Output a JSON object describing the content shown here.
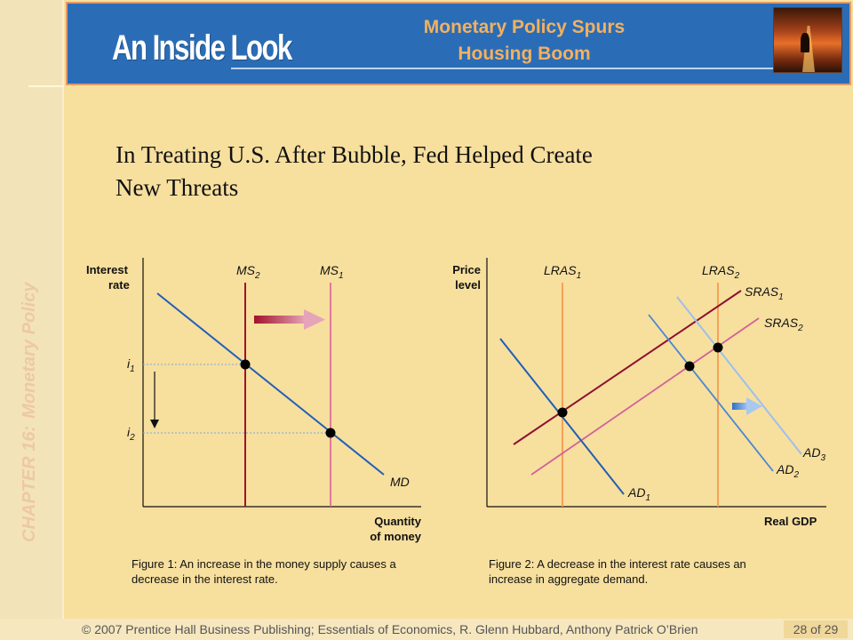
{
  "sidebar": {
    "chapter": "CHAPTER 16:",
    "topic": "Monetary Policy"
  },
  "header": {
    "brand": "An Inside Look",
    "title_line1": "Monetary Policy Spurs",
    "title_line2": "Housing Boom"
  },
  "headline": {
    "line1": "In Treating U.S. After Bubble, Fed Helped Create",
    "line2": "New Threats"
  },
  "figure1": {
    "ylabel_line1": "Interest",
    "ylabel_line2": "rate",
    "xlabel_line1": "Quantity",
    "xlabel_line2": "of money",
    "curves": {
      "ms2": "MS",
      "ms2_sub": "2",
      "ms1": "MS",
      "ms1_sub": "1",
      "md": "MD"
    },
    "levels": {
      "i1": "i",
      "i1_sub": "1",
      "i2": "i",
      "i2_sub": "2"
    },
    "caption_line1": "Figure 1:  An increase in the money supply causes a",
    "caption_line2": "decrease in the interest rate."
  },
  "figure2": {
    "ylabel_line1": "Price",
    "ylabel_line2": "level",
    "xlabel": "Real GDP",
    "curves": {
      "lras1": "LRAS",
      "lras1_sub": "1",
      "lras2": "LRAS",
      "lras2_sub": "2",
      "sras1": "SRAS",
      "sras1_sub": "1",
      "sras2": "SRAS",
      "sras2_sub": "2",
      "ad1": "AD",
      "ad1_sub": "1",
      "ad2": "AD",
      "ad2_sub": "2",
      "ad3": "AD",
      "ad3_sub": "3"
    },
    "caption_line1": "Figure 2:  A decrease in the interest rate causes an",
    "caption_line2": "increase in aggregate demand."
  },
  "colors": {
    "background": "#f7df9e",
    "header_blue": "#2a6db6",
    "title_orange": "#f4b060",
    "ms2_red": "#a0122a",
    "ms1_pink": "#d9609a",
    "md_blue": "#1f5fb8",
    "lras_orange": "#f59a50",
    "sras1_maroon": "#8e1030",
    "sras2_pink": "#d2609a",
    "ad1_blue": "#1f5fb8",
    "ad2_blue": "#4a86d6",
    "ad3_lightblue": "#9cc0ee"
  },
  "footer": {
    "copyright": "© 2007 Prentice Hall Business Publishing; Essentials of Economics, R. Glenn Hubbard, Anthony Patrick O’Brien",
    "page": "28 of 29"
  }
}
